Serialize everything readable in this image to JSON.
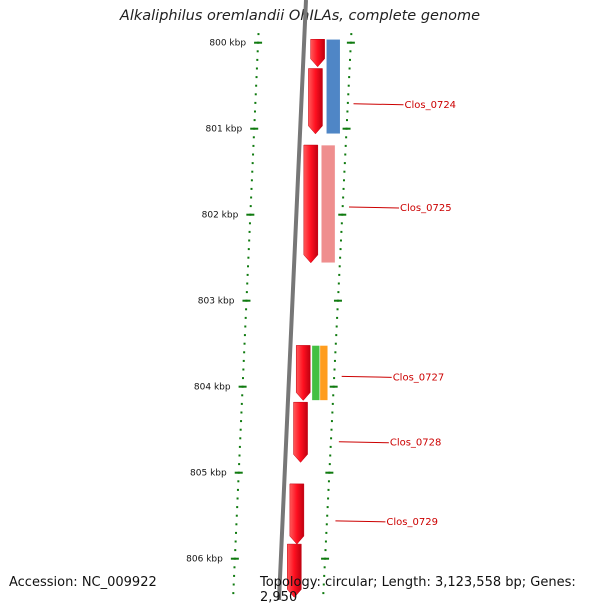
{
  "title": "Alkaliphilus oremlandii OhILAs, complete genome",
  "footer": {
    "accession": "Accession: NC_009922",
    "summary": "Topology: circular; Length: 3,123,558 bp; Genes: 2,950"
  },
  "ticks": [
    {
      "label": "800 kbp",
      "kbp": 800
    },
    {
      "label": "801 kbp",
      "kbp": 801
    },
    {
      "label": "802 kbp",
      "kbp": 802
    },
    {
      "label": "803 kbp",
      "kbp": 803
    },
    {
      "label": "804 kbp",
      "kbp": 804
    },
    {
      "label": "805 kbp",
      "kbp": 805
    },
    {
      "label": "806 kbp",
      "kbp": 806
    }
  ],
  "genes": [
    {
      "kbp_start": 799.96,
      "kbp_end": 800.28,
      "name": ""
    },
    {
      "kbp_start": 800.3,
      "kbp_end": 801.06,
      "name": ""
    },
    {
      "kbp_start": 801.19,
      "kbp_end": 802.56,
      "name": ""
    },
    {
      "kbp_start": 803.52,
      "kbp_end": 804.16,
      "name": ""
    },
    {
      "kbp_start": 804.18,
      "kbp_end": 804.88,
      "name": ""
    },
    {
      "kbp_start": 805.13,
      "kbp_end": 805.83,
      "name": ""
    },
    {
      "kbp_start": 805.83,
      "kbp_end": 806.45,
      "name": ""
    }
  ],
  "features": [
    {
      "kbp_start": 799.96,
      "kbp_end": 801.06,
      "color": "#4f86c6",
      "label": "Clos_0724",
      "label_kbp": 800.71
    },
    {
      "kbp_start": 801.19,
      "kbp_end": 802.56,
      "color": "#ef8e8e",
      "label": "Clos_0725",
      "label_kbp": 801.91
    },
    {
      "kbp_start": 803.52,
      "kbp_end": 804.16,
      "color": "#43c043",
      "label": "",
      "label_kbp": null
    },
    {
      "kbp_start": 803.52,
      "kbp_end": 804.16,
      "color": "#ff9d1e",
      "label": "Clos_0727",
      "label_kbp": 803.88
    },
    {
      "kbp_start": null,
      "kbp_end": null,
      "color": null,
      "label": "Clos_0728",
      "label_kbp": 804.64
    },
    {
      "kbp_start": null,
      "kbp_end": null,
      "color": null,
      "label": "Clos_0729",
      "label_kbp": 805.56
    }
  ],
  "colors": {
    "backbone": "#777777",
    "gene": "#e8001c",
    "tick": "#0f7a0f",
    "label": "#cc0000"
  }
}
